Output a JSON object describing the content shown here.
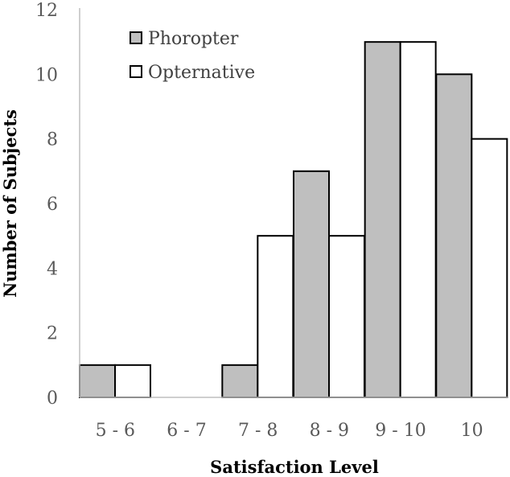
{
  "chart_data": {
    "type": "bar",
    "title": "",
    "xlabel": "Satisfaction Level",
    "ylabel": "Number of Subjects",
    "categories": [
      "5 - 6",
      "6 - 7",
      "7 - 8",
      "8 - 9",
      "9 - 10",
      "10"
    ],
    "series": [
      {
        "name": "Phoropter",
        "values": [
          1,
          0,
          1,
          7,
          11,
          10
        ],
        "color": "#bfbfbf"
      },
      {
        "name": "Opternative",
        "values": [
          1,
          0,
          5,
          5,
          11,
          8
        ],
        "color": "#ffffff"
      }
    ],
    "ylim": [
      0,
      12
    ],
    "yticks": [
      "0",
      "2",
      "4",
      "6",
      "8",
      "10",
      "12"
    ],
    "grid": false,
    "legend_position": "top-left",
    "bar_outline_color": "#000000",
    "axis_color": "#bfbfbf"
  }
}
